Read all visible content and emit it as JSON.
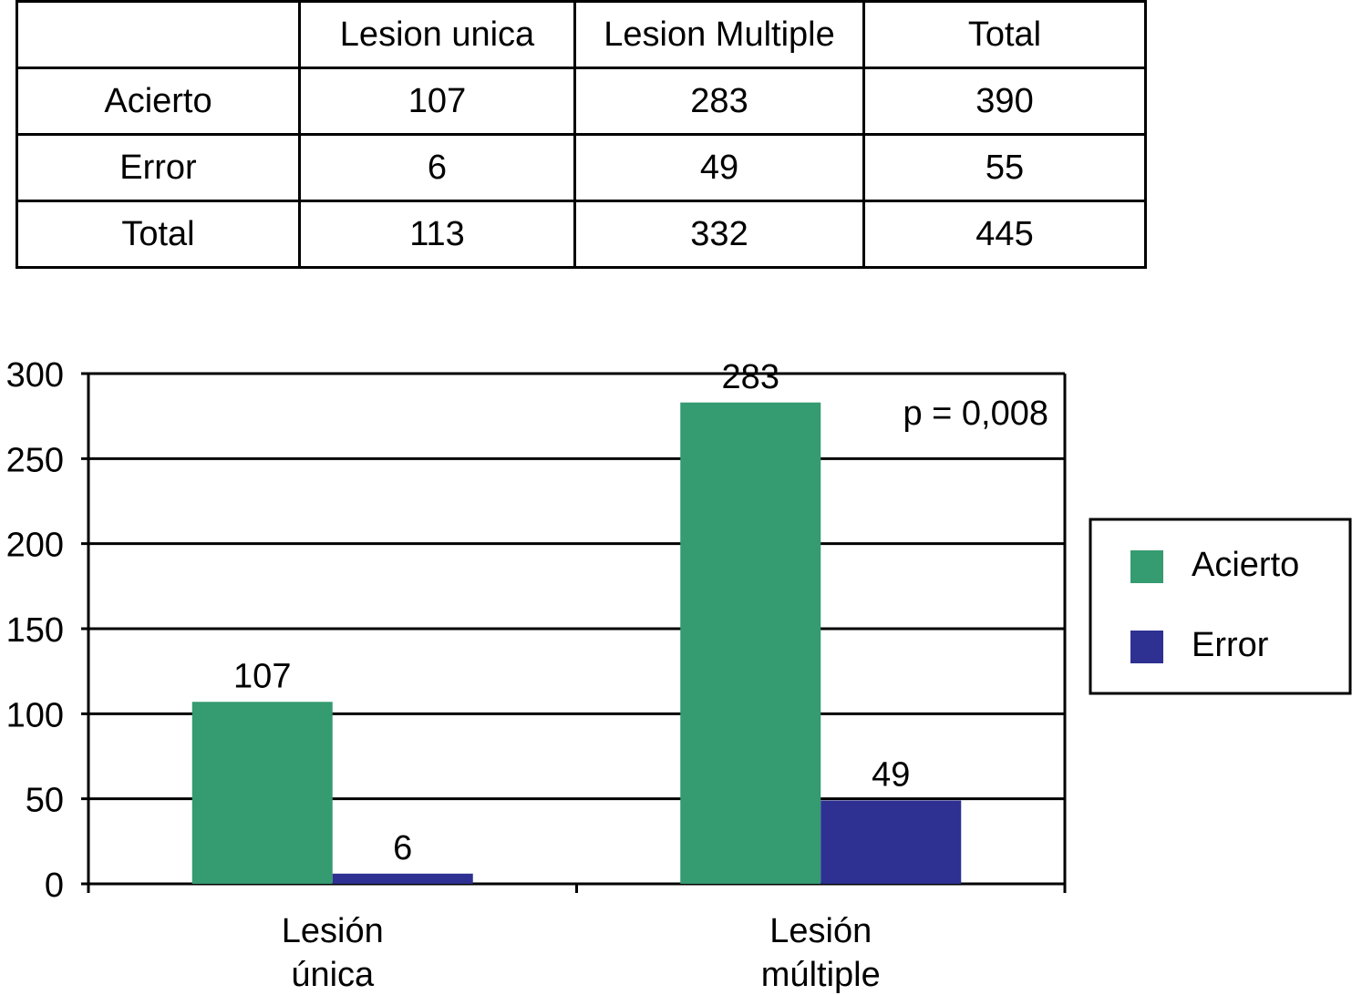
{
  "table": {
    "header": [
      "Lesion unica",
      "Lesion Multiple",
      "Total"
    ],
    "rows": [
      [
        "Acierto",
        "107",
        "283",
        "390"
      ],
      [
        "Error",
        "6",
        "49",
        "55"
      ],
      [
        "Total",
        "113",
        "332",
        "445"
      ]
    ]
  },
  "chart_data": {
    "type": "bar",
    "categories": [
      "Lesión única",
      "Lesión múltiple"
    ],
    "series": [
      {
        "name": "Acierto",
        "color": "#359b70",
        "values": [
          107,
          283
        ]
      },
      {
        "name": "Error",
        "color": "#2e3192",
        "values": [
          6,
          49
        ]
      }
    ],
    "ylim": [
      0,
      300
    ],
    "yticks": [
      0,
      50,
      100,
      150,
      200,
      250,
      300
    ],
    "grid": true,
    "annotation": "p = 0,008",
    "legend": "right"
  }
}
